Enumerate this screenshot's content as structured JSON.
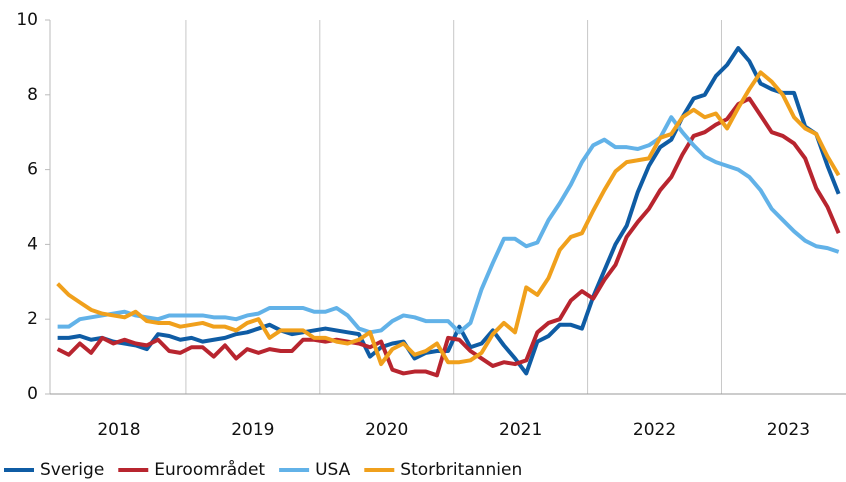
{
  "chart_data": {
    "type": "line",
    "x": [
      2018.042,
      2018.125,
      2018.208,
      2018.292,
      2018.375,
      2018.458,
      2018.542,
      2018.625,
      2018.708,
      2018.792,
      2018.875,
      2018.958,
      2019.042,
      2019.125,
      2019.208,
      2019.292,
      2019.375,
      2019.458,
      2019.542,
      2019.625,
      2019.708,
      2019.792,
      2019.875,
      2019.958,
      2020.042,
      2020.125,
      2020.208,
      2020.292,
      2020.375,
      2020.458,
      2020.542,
      2020.625,
      2020.708,
      2020.792,
      2020.875,
      2020.958,
      2021.042,
      2021.125,
      2021.208,
      2021.292,
      2021.375,
      2021.458,
      2021.542,
      2021.625,
      2021.708,
      2021.792,
      2021.875,
      2021.958,
      2022.042,
      2022.125,
      2022.208,
      2022.292,
      2022.375,
      2022.458,
      2022.542,
      2022.625,
      2022.708,
      2022.792,
      2022.875,
      2022.958,
      2023.042,
      2023.125,
      2023.208,
      2023.292,
      2023.375,
      2023.458,
      2023.542,
      2023.625,
      2023.708,
      2023.792,
      2023.875
    ],
    "series": [
      {
        "name": "Sverige",
        "color": "#0f5ca4",
        "values": [
          1.5,
          1.5,
          1.55,
          1.45,
          1.5,
          1.4,
          1.35,
          1.3,
          1.2,
          1.6,
          1.55,
          1.45,
          1.5,
          1.4,
          1.45,
          1.5,
          1.6,
          1.65,
          1.75,
          1.85,
          1.7,
          1.6,
          1.65,
          1.7,
          1.75,
          1.7,
          1.65,
          1.6,
          1.0,
          1.25,
          1.35,
          1.4,
          0.95,
          1.1,
          1.15,
          1.15,
          1.8,
          1.25,
          1.35,
          1.7,
          1.3,
          0.95,
          0.55,
          1.4,
          1.55,
          1.85,
          1.85,
          1.75,
          2.6,
          3.3,
          4.0,
          4.5,
          5.4,
          6.1,
          6.6,
          6.8,
          7.4,
          7.9,
          8.0,
          8.5,
          8.8,
          9.25,
          8.9,
          8.3,
          8.15,
          8.05,
          8.05,
          7.15,
          6.95,
          6.1,
          5.35
        ]
      },
      {
        "name": "Euroområdet",
        "color": "#b8252f",
        "values": [
          1.2,
          1.05,
          1.35,
          1.1,
          1.5,
          1.35,
          1.45,
          1.35,
          1.3,
          1.45,
          1.15,
          1.1,
          1.25,
          1.25,
          1.0,
          1.3,
          0.95,
          1.2,
          1.1,
          1.2,
          1.15,
          1.15,
          1.45,
          1.45,
          1.4,
          1.45,
          1.4,
          1.35,
          1.25,
          1.4,
          0.65,
          0.55,
          0.6,
          0.6,
          0.5,
          1.5,
          1.45,
          1.15,
          0.95,
          0.75,
          0.85,
          0.8,
          0.9,
          1.65,
          1.9,
          2.0,
          2.5,
          2.75,
          2.55,
          3.05,
          3.45,
          4.2,
          4.6,
          4.95,
          5.45,
          5.8,
          6.4,
          6.9,
          7.0,
          7.2,
          7.35,
          7.75,
          7.9,
          7.45,
          7.0,
          6.9,
          6.7,
          6.3,
          5.5,
          5.0,
          4.3
        ]
      },
      {
        "name": "USA",
        "color": "#62b2e8",
        "values": [
          1.8,
          1.8,
          2.0,
          2.05,
          2.1,
          2.15,
          2.2,
          2.1,
          2.05,
          2.0,
          2.1,
          2.1,
          2.1,
          2.1,
          2.05,
          2.05,
          2.0,
          2.1,
          2.15,
          2.3,
          2.3,
          2.3,
          2.3,
          2.2,
          2.2,
          2.3,
          2.1,
          1.75,
          1.65,
          1.7,
          1.95,
          2.1,
          2.05,
          1.95,
          1.95,
          1.95,
          1.65,
          1.9,
          2.8,
          3.5,
          4.15,
          4.15,
          3.95,
          4.05,
          4.65,
          5.1,
          5.6,
          6.2,
          6.65,
          6.8,
          6.6,
          6.6,
          6.55,
          6.65,
          6.85,
          7.4,
          7.0,
          6.65,
          6.35,
          6.2,
          6.1,
          6.0,
          5.8,
          5.45,
          4.95,
          4.65,
          4.35,
          4.1,
          3.95,
          3.9,
          3.8
        ]
      },
      {
        "name": "Storbritannien",
        "color": "#f0a01c",
        "values": [
          2.95,
          2.65,
          2.45,
          2.25,
          2.15,
          2.1,
          2.05,
          2.2,
          1.95,
          1.9,
          1.9,
          1.8,
          1.85,
          1.9,
          1.8,
          1.8,
          1.7,
          1.9,
          2.0,
          1.5,
          1.7,
          1.7,
          1.7,
          1.5,
          1.5,
          1.4,
          1.35,
          1.45,
          1.65,
          0.8,
          1.2,
          1.35,
          1.05,
          1.15,
          1.35,
          0.85,
          0.85,
          0.9,
          1.1,
          1.6,
          1.9,
          1.65,
          2.85,
          2.65,
          3.1,
          3.85,
          4.2,
          4.3,
          4.9,
          5.45,
          5.95,
          6.2,
          6.25,
          6.3,
          6.85,
          6.95,
          7.4,
          7.6,
          7.4,
          7.5,
          7.1,
          7.65,
          8.15,
          8.6,
          8.35,
          8.0,
          7.4,
          7.1,
          6.95,
          6.35,
          5.85
        ]
      }
    ],
    "xlim": [
      2017.985,
      2023.93
    ],
    "xticks": [
      {
        "value": 2018.5,
        "label": "2018"
      },
      {
        "value": 2019.5,
        "label": "2019"
      },
      {
        "value": 2020.5,
        "label": "2020"
      },
      {
        "value": 2021.5,
        "label": "2021"
      },
      {
        "value": 2022.5,
        "label": "2022"
      },
      {
        "value": 2023.5,
        "label": "2023"
      }
    ],
    "xgrid": [
      2019,
      2020,
      2021,
      2022,
      2023
    ],
    "ylim": [
      0,
      10
    ],
    "yticks": [
      0,
      2,
      4,
      6,
      8,
      10
    ],
    "legend": "bottom"
  }
}
